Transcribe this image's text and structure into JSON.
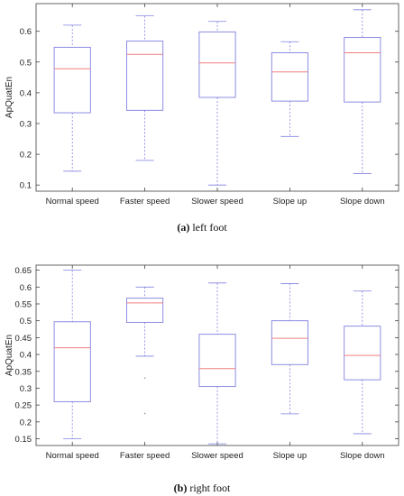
{
  "colors": {
    "box": "#8080e0",
    "median": "#f08080",
    "whisker": "#8080e0",
    "outlier": "#a0a0a0",
    "axis": "#404040",
    "tick_text": "#222222"
  },
  "captions": [
    {
      "letter": "(a)",
      "text": "left foot"
    },
    {
      "letter": "(b)",
      "text": "right foot"
    }
  ],
  "chart_data": [
    {
      "type": "box",
      "ylabel": "ApQuatEn",
      "xlabel": "",
      "categories": [
        "Normal speed",
        "Faster speed",
        "Slower speed",
        "Slope up",
        "Slope down"
      ],
      "ylim": [
        0.08,
        0.69
      ],
      "yticks": [
        0.1,
        0.2,
        0.3,
        0.4,
        0.5,
        0.6
      ],
      "ytick_labels": [
        "0.1",
        "0.2",
        "0.3",
        "0.4",
        "0.5",
        "0.6"
      ],
      "grid": false,
      "boxes": [
        {
          "min": 0.145,
          "q1": 0.335,
          "median": 0.478,
          "q3": 0.548,
          "max": 0.62,
          "outliers": []
        },
        {
          "min": 0.18,
          "q1": 0.343,
          "median": 0.525,
          "q3": 0.568,
          "max": 0.65,
          "outliers": []
        },
        {
          "min": 0.1,
          "q1": 0.385,
          "median": 0.497,
          "q3": 0.598,
          "max": 0.632,
          "outliers": []
        },
        {
          "min": 0.258,
          "q1": 0.373,
          "median": 0.468,
          "q3": 0.53,
          "max": 0.566,
          "outliers": []
        },
        {
          "min": 0.137,
          "q1": 0.37,
          "median": 0.53,
          "q3": 0.58,
          "max": 0.67,
          "outliers": []
        }
      ]
    },
    {
      "type": "box",
      "ylabel": "ApQuatEn",
      "xlabel": "",
      "categories": [
        "Normal speed",
        "Faster speed",
        "Slower speed",
        "Slope up",
        "Slope down"
      ],
      "ylim": [
        0.13,
        0.665
      ],
      "yticks": [
        0.15,
        0.2,
        0.25,
        0.3,
        0.35,
        0.4,
        0.45,
        0.5,
        0.55,
        0.6,
        0.65
      ],
      "ytick_labels": [
        "0.15",
        "0.2",
        "0.25",
        "0.3",
        "0.35",
        "0.4",
        "0.45",
        "0.5",
        "0.55",
        "0.6",
        "0.65"
      ],
      "grid": false,
      "boxes": [
        {
          "min": 0.15,
          "q1": 0.26,
          "median": 0.42,
          "q3": 0.497,
          "max": 0.65,
          "outliers": []
        },
        {
          "min": 0.395,
          "q1": 0.495,
          "median": 0.553,
          "q3": 0.567,
          "max": 0.6,
          "outliers": [
            0.33,
            0.225
          ]
        },
        {
          "min": 0.135,
          "q1": 0.305,
          "median": 0.358,
          "q3": 0.46,
          "max": 0.612,
          "outliers": []
        },
        {
          "min": 0.224,
          "q1": 0.37,
          "median": 0.448,
          "q3": 0.5,
          "max": 0.61,
          "outliers": []
        },
        {
          "min": 0.165,
          "q1": 0.325,
          "median": 0.397,
          "q3": 0.484,
          "max": 0.588,
          "outliers": []
        }
      ]
    }
  ]
}
